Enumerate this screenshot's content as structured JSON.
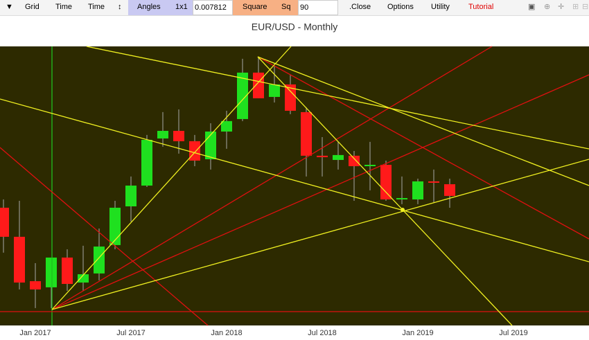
{
  "toolbar": {
    "items": [
      "▼",
      "Grid",
      "Time",
      "Time",
      "↕",
      "Angles",
      "1x1"
    ],
    "angle_input": "0.007812",
    "square_items": [
      "Square",
      "Sq"
    ],
    "square_input": "90",
    "menu": [
      ".Close",
      "Options",
      "Utility",
      "Tutorial"
    ]
  },
  "chart_data": {
    "type": "candlestick",
    "title": "EUR/USD - Monthly",
    "categories": [
      null,
      null,
      "Jan 2017",
      null,
      null,
      null,
      null,
      null,
      "Jul 2017",
      null,
      null,
      null,
      null,
      null,
      "Jan 2018",
      null,
      null,
      null,
      null,
      null,
      "Jul 2018",
      null,
      null,
      null,
      null,
      null,
      "Jan 2019",
      null,
      null,
      null,
      null,
      null,
      "Jul 2019"
    ],
    "open": [
      1.1226,
      1.097,
      1.0579,
      1.0525,
      1.0787,
      1.0567,
      1.0647,
      1.0897,
      1.1238,
      1.1421,
      1.1836,
      1.1903,
      1.1812,
      1.1653,
      1.1897,
      1.2007,
      1.2416,
      1.2202,
      1.2312,
      1.2068,
      1.1684,
      1.1647,
      1.1684,
      1.1592,
      1.1604,
      1.1299,
      1.1299,
      1.1458,
      1.1433,
      null,
      null,
      null,
      null
    ],
    "high": [
      1.1299,
      1.1287,
      1.0738,
      1.0787,
      1.086,
      1.0891,
      1.1043,
      1.1287,
      1.1501,
      1.1867,
      1.2068,
      1.2092,
      1.1867,
      1.197,
      1.208,
      1.2538,
      1.2556,
      1.2477,
      1.2397,
      1.2111,
      1.1848,
      1.1806,
      1.1726,
      1.1806,
      1.1641,
      1.1501,
      1.1482,
      1.1562,
      1.1482,
      null,
      null,
      null,
      null
    ],
    "low": [
      1.083,
      1.0506,
      1.0342,
      1.0342,
      1.0494,
      1.0494,
      1.0586,
      1.086,
      1.1104,
      1.1409,
      1.1763,
      1.1702,
      1.1592,
      1.1562,
      1.1745,
      1.1989,
      1.219,
      1.2153,
      1.205,
      1.1501,
      1.1501,
      1.1562,
      1.1287,
      1.1379,
      1.1287,
      1.1257,
      1.1257,
      1.1275,
      1.1226,
      null,
      null,
      null,
      null
    ],
    "close": [
      1.097,
      1.0567,
      1.0506,
      1.0787,
      1.0555,
      1.064,
      1.0884,
      1.1226,
      1.1421,
      1.1824,
      1.1903,
      1.1812,
      1.1641,
      1.1897,
      1.1989,
      1.2416,
      1.219,
      1.2312,
      1.208,
      1.1684,
      1.1671,
      1.169,
      1.1592,
      1.1604,
      1.1299,
      1.1311,
      1.1458,
      1.1446,
      1.133,
      null,
      null,
      null,
      null
    ],
    "ylim": [
      1.0189,
      1.2647
    ],
    "up_color": "#1fe01f",
    "down_color": "#ff1a1a",
    "wick_color": "#a8a8a8",
    "background": "#2d2a00"
  }
}
